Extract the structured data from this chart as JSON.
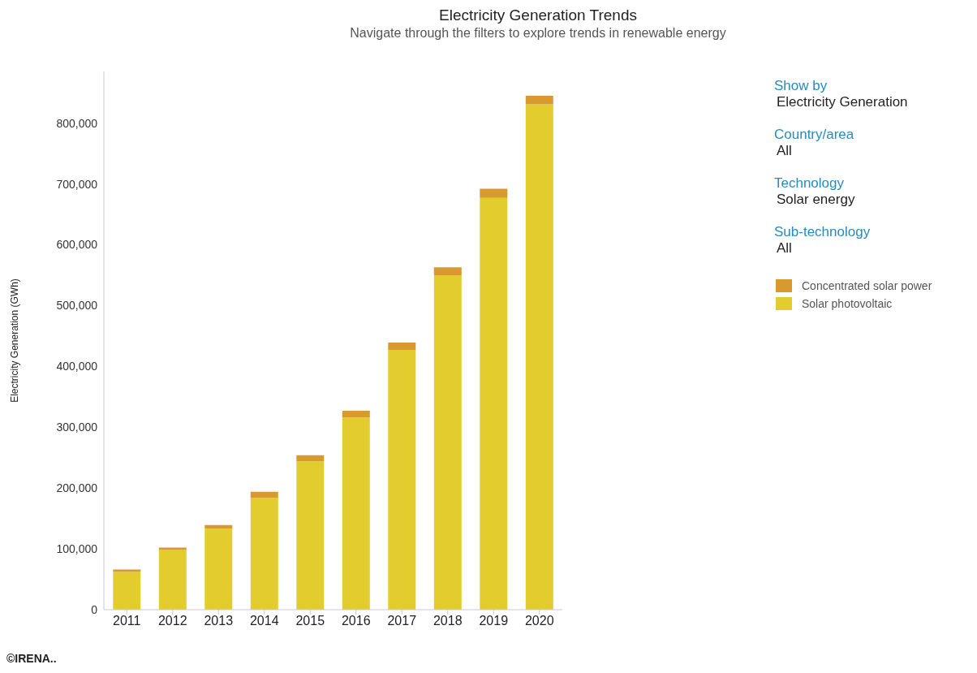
{
  "chart_data": {
    "type": "bar",
    "title": "Electricity Generation Trends",
    "subtitle": "Navigate through the filters to explore trends in renewable energy",
    "ylabel": "Electricity Generation (GWh)",
    "categories": [
      "2011",
      "2012",
      "2013",
      "2014",
      "2015",
      "2016",
      "2017",
      "2018",
      "2019",
      "2020"
    ],
    "series": [
      {
        "name": "Solar photovoltaic",
        "color": "#e3cd2e",
        "values": [
          62000,
          98000,
          133000,
          184000,
          244000,
          316000,
          427000,
          550000,
          677000,
          831000
        ]
      },
      {
        "name": "Concentrated solar power",
        "color": "#d89a2e",
        "values": [
          4000,
          4000,
          6000,
          10000,
          10000,
          11000,
          12000,
          13000,
          15000,
          14000
        ]
      }
    ],
    "stacked": true,
    "ylim": [
      0,
      885000
    ],
    "yticks": [
      0,
      {
        "value": 100000,
        "label": "100,000"
      },
      {
        "value": 200000,
        "label": "200,000"
      },
      {
        "value": 300000,
        "label": "300,000"
      },
      {
        "value": 400000,
        "label": "400,000"
      },
      {
        "value": 500000,
        "label": "500,000"
      },
      {
        "value": 600000,
        "label": "600,000"
      },
      {
        "value": 700000,
        "label": "700,000"
      },
      {
        "value": 800000,
        "label": "800,000"
      }
    ],
    "grid": false,
    "legend": "right",
    "annotations": [
      "Show by",
      "Electricity Generation",
      "Country/area",
      "All",
      "Technology",
      "Solar energy",
      "Sub-technology",
      "All",
      "©IRENA.."
    ]
  }
}
